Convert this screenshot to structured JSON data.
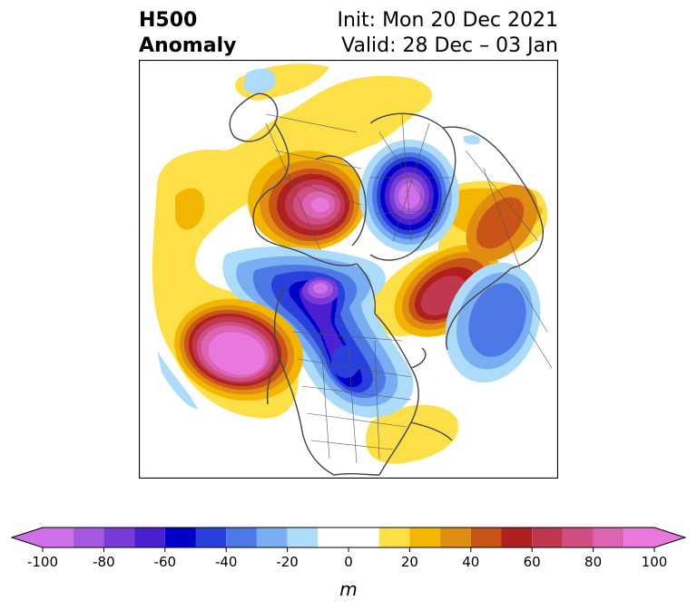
{
  "title": {
    "left_line1": "H500",
    "left_line2": "Anomaly",
    "right_line1": "Init: Mon 20 Dec 2021",
    "right_line2": "Valid: 28 Dec – 03 Jan"
  },
  "colorbar": {
    "unit": "m",
    "min": -100,
    "max": 100,
    "ticks": [
      "-100",
      "-80",
      "-60",
      "-40",
      "-20",
      "0",
      "20",
      "40",
      "60",
      "80",
      "100"
    ],
    "tick_values": [
      -100,
      -80,
      -60,
      -40,
      -20,
      0,
      20,
      40,
      60,
      80,
      100
    ],
    "bins": [
      {
        "from": -100,
        "to": -90,
        "color": "#d070e8"
      },
      {
        "from": -90,
        "to": -80,
        "color": "#a558e0"
      },
      {
        "from": -80,
        "to": -70,
        "color": "#7a3ad8"
      },
      {
        "from": -70,
        "to": -60,
        "color": "#4a20d0"
      },
      {
        "from": -60,
        "to": -50,
        "color": "#0000c8"
      },
      {
        "from": -50,
        "to": -40,
        "color": "#2a40dc"
      },
      {
        "from": -40,
        "to": -30,
        "color": "#4e78e6"
      },
      {
        "from": -30,
        "to": -20,
        "color": "#7aaef2"
      },
      {
        "from": -20,
        "to": -10,
        "color": "#acdcfa"
      },
      {
        "from": -10,
        "to": 10,
        "color": "#ffffff"
      },
      {
        "from": 10,
        "to": 20,
        "color": "#fde047"
      },
      {
        "from": 20,
        "to": 30,
        "color": "#f2b600"
      },
      {
        "from": 30,
        "to": 40,
        "color": "#e08c10"
      },
      {
        "from": 40,
        "to": 50,
        "color": "#c85418"
      },
      {
        "from": 50,
        "to": 60,
        "color": "#b02020"
      },
      {
        "from": 60,
        "to": 70,
        "color": "#c03850"
      },
      {
        "from": 70,
        "to": 80,
        "color": "#d04e82"
      },
      {
        "from": 80,
        "to": 90,
        "color": "#dc64b4"
      },
      {
        "from": 90,
        "to": 100,
        "color": "#e878de"
      }
    ]
  }
}
